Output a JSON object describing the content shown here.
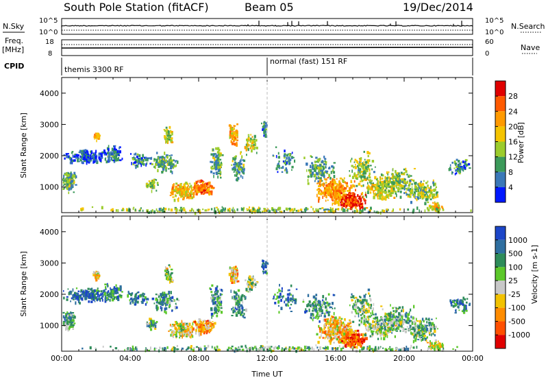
{
  "header": {
    "station": "South Pole Station (fitACF)",
    "beam": "Beam 05",
    "date": "19/Dec/2014"
  },
  "strip": {
    "nsky_label": "N.Sky",
    "nsearch_label": "N.Search",
    "freq_label": "Freq.",
    "freq_unit": "[MHz]",
    "nave_label": "Nave",
    "cpid_label": "CPID",
    "nsky_ticks": [
      "10^5",
      "10^0"
    ],
    "nsearch_ticks": [
      "10^5",
      "10^0"
    ],
    "freq_ticks": [
      "18",
      "8"
    ],
    "nave_ticks": [
      "60",
      "0"
    ],
    "cpid_modes": [
      {
        "name": "themis 3300 RF",
        "start_hour": 0
      },
      {
        "name": "normal (fast) 151 RF",
        "start_hour": 12
      }
    ]
  },
  "power_colorbar": {
    "label": "Power [dB]",
    "ticks": [
      "28",
      "24",
      "20",
      "16",
      "12",
      "8",
      "4"
    ],
    "colors": [
      "#e00000",
      "#ff5a00",
      "#ff9a00",
      "#f5c400",
      "#9ccc2c",
      "#3c9a5a",
      "#3a78b8",
      "#0018ff"
    ]
  },
  "velocity_colorbar": {
    "label": "Velocity [m s-1]",
    "ticks": [
      "1000",
      "500",
      "100",
      "25",
      "-25",
      "-100",
      "-500",
      "-1000"
    ],
    "colors": [
      "#1c46c8",
      "#2f6fa0",
      "#2e8c5a",
      "#5cc82a",
      "#c8c8c8",
      "#f2c200",
      "#ff8c00",
      "#ff5000",
      "#e00000"
    ]
  },
  "chart_data": [
    {
      "type": "heatmap",
      "name": "power",
      "xlabel": "",
      "ylabel": "Slant Range [km]",
      "xlim": [
        0,
        24
      ],
      "ylim": [
        180,
        4500
      ],
      "x_ticks": [
        "00:00",
        "04:00",
        "08:00",
        "12:00",
        "16:00",
        "20:00",
        "00:00"
      ],
      "y_ticks": [
        1000,
        2000,
        3000,
        4000
      ],
      "colorbar_range_db": [
        0,
        32
      ]
    },
    {
      "type": "heatmap",
      "name": "velocity",
      "xlabel": "Time UT",
      "ylabel": "Slant Range [km]",
      "xlim": [
        0,
        24
      ],
      "ylim": [
        180,
        4500
      ],
      "x_ticks": [
        "00:00",
        "04:00",
        "08:00",
        "12:00",
        "16:00",
        "20:00",
        "00:00"
      ],
      "y_ticks": [
        1000,
        2000,
        3000,
        4000
      ],
      "colorbar_range_ms": [
        -1000,
        1000
      ]
    }
  ]
}
